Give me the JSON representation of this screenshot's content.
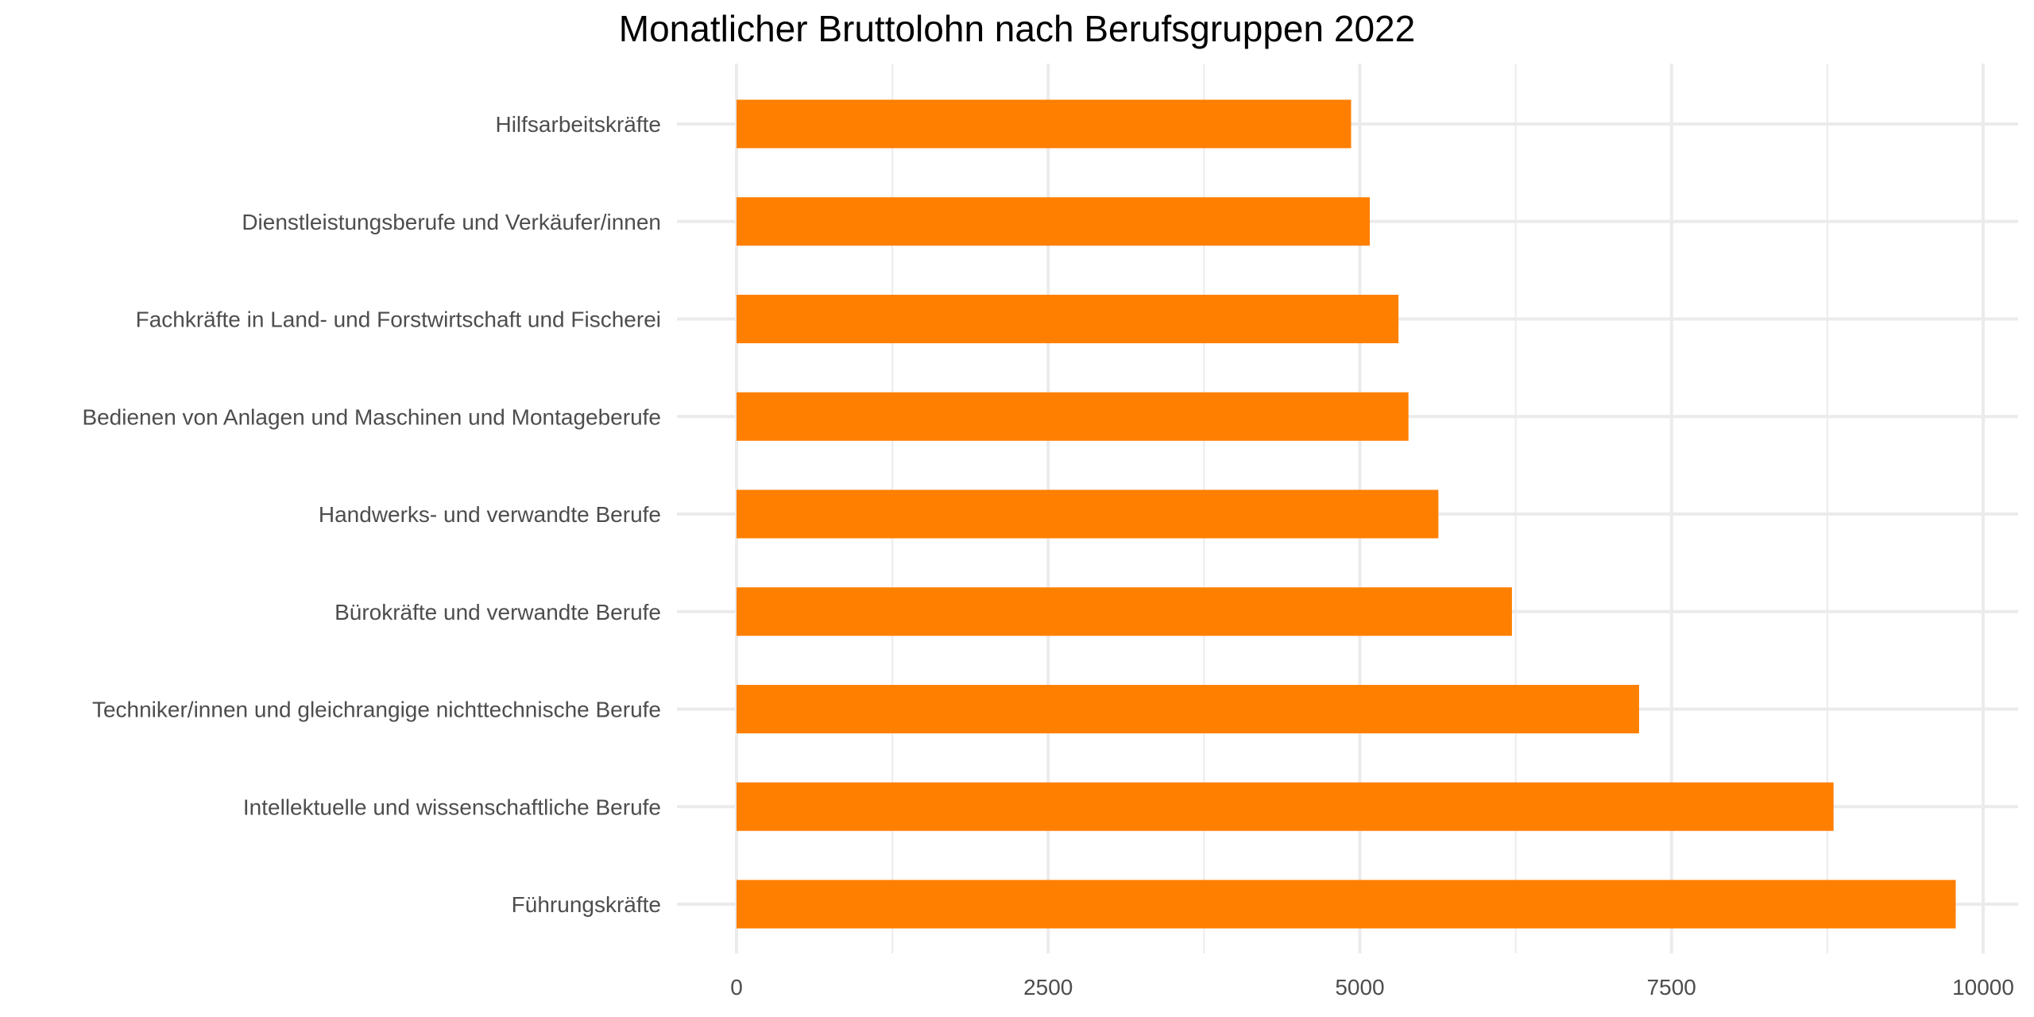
{
  "chart_data": {
    "type": "bar",
    "orientation": "horizontal",
    "title": "Monatlicher Bruttolohn nach Berufsgruppen 2022",
    "xlabel": "",
    "ylabel": "",
    "categories": [
      "Hilfsarbeitskräfte",
      "Dienstleistungsberufe und Verkäufer/innen",
      "Fachkräfte in Land- und Forstwirtschaft und Fischerei",
      "Bedienen von Anlagen und Maschinen und Montageberufe",
      "Handwerks- und verwandte Berufe",
      "Bürokräfte und verwandte Berufe",
      "Techniker/innen und gleichrangige nichttechnische Berufe",
      "Intellektuelle und wissenschaftliche Berufe",
      "Führungskräfte"
    ],
    "values": [
      4930,
      5080,
      5310,
      5390,
      5630,
      6220,
      7240,
      8800,
      9780
    ],
    "xlim": [
      0,
      10000
    ],
    "x_ticks": [
      0,
      2500,
      5000,
      7500,
      10000
    ],
    "x_minor_ticks": [
      1250,
      3750,
      6250,
      8750
    ],
    "bar_color": "#FF7F00",
    "grid": true,
    "legend": "none"
  }
}
